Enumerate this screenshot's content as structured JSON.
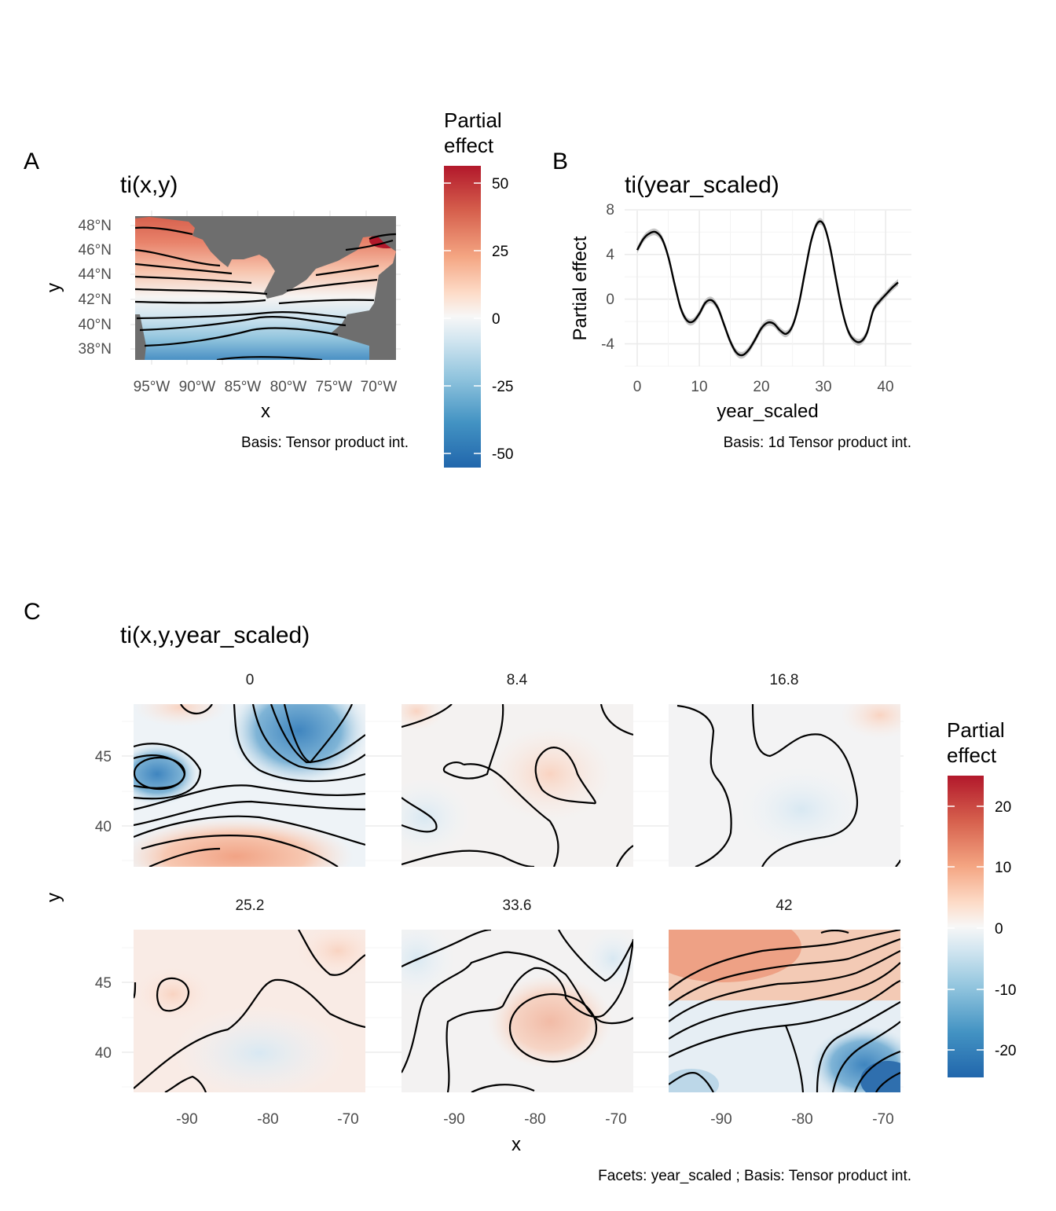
{
  "panels": {
    "A": {
      "letter": "A",
      "title": "ti(x,y)",
      "xlabel": "x",
      "ylabel": "y",
      "x_ticks": [
        "95°W",
        "90°W",
        "85°W",
        "80°W",
        "75°W",
        "70°W"
      ],
      "y_ticks": [
        "48°N",
        "46°N",
        "44°N",
        "42°N",
        "40°N",
        "38°N"
      ],
      "caption": "Basis: Tensor product int."
    },
    "B": {
      "letter": "B",
      "title": "ti(year_scaled)",
      "xlabel": "year_scaled",
      "ylabel": "Partial effect",
      "x_ticks": [
        "0",
        "10",
        "20",
        "30",
        "40"
      ],
      "y_ticks": [
        "8",
        "4",
        "0",
        "-4"
      ],
      "caption": "Basis: 1d Tensor product int."
    },
    "C": {
      "letter": "C",
      "title": "ti(x,y,year_scaled)",
      "xlabel": "x",
      "ylabel": "y",
      "facets": [
        "0",
        "8.4",
        "16.8",
        "25.2",
        "33.6",
        "42"
      ],
      "x_ticks": [
        "-90",
        "-80",
        "-70"
      ],
      "y_ticks": [
        "45",
        "40"
      ],
      "caption": "Facets: year_scaled ; Basis: Tensor product int."
    }
  },
  "legends": {
    "top": {
      "title_line1": "Partial",
      "title_line2": "effect",
      "ticks": [
        "50",
        "25",
        "0",
        "-25",
        "-50"
      ]
    },
    "bottom": {
      "title_line1": "Partial",
      "title_line2": "effect",
      "ticks": [
        "20",
        "10",
        "0",
        "-10",
        "-20"
      ]
    }
  },
  "colors": {
    "high": "#b2182b",
    "mid": "#f7f7f7",
    "low": "#2166ac",
    "land": "#6e6e6e"
  },
  "chart_data": [
    {
      "type": "heatmap",
      "title": "ti(x,y)",
      "xlabel": "x",
      "ylabel": "y",
      "xlim": [
        -97,
        -68
      ],
      "ylim": [
        37,
        48.7
      ],
      "legend_range": [
        -55,
        57
      ]
    },
    {
      "type": "line",
      "title": "ti(year_scaled)",
      "xlabel": "year_scaled",
      "ylabel": "Partial effect",
      "xlim": [
        0,
        42
      ],
      "ylim": [
        -6,
        8
      ],
      "x": [
        0,
        1,
        2,
        3,
        4,
        5,
        6,
        7,
        8,
        9,
        10,
        11,
        12,
        13,
        14,
        15,
        16,
        17,
        18,
        19,
        20,
        21,
        22,
        23,
        24,
        25,
        26,
        27,
        28,
        29,
        30,
        31,
        32,
        33,
        34,
        35,
        36,
        37,
        38,
        39,
        40,
        41,
        42
      ],
      "y": [
        4.4,
        5.4,
        5.9,
        6.0,
        5.4,
        3.8,
        1.4,
        -0.8,
        -1.9,
        -2.0,
        -1.3,
        -0.3,
        -0.1,
        -0.8,
        -2.3,
        -3.8,
        -4.8,
        -5.0,
        -4.5,
        -3.6,
        -2.6,
        -2.1,
        -2.2,
        -2.8,
        -3.1,
        -2.4,
        -0.5,
        2.4,
        5.2,
        6.8,
        6.7,
        4.8,
        1.8,
        -1.0,
        -2.9,
        -3.7,
        -3.8,
        -3.0,
        -1.0,
        -0.2,
        0.4,
        1.0,
        1.5
      ],
      "band_halfwidth": 0.3
    },
    {
      "type": "heatmap",
      "title": "ti(x,y,year_scaled)",
      "xlabel": "x",
      "ylabel": "y",
      "facet_by": "year_scaled",
      "facets": [
        0,
        8.4,
        16.8,
        25.2,
        33.6,
        42
      ],
      "xlim": [
        -96.5,
        -68
      ],
      "ylim": [
        37.3,
        48.7
      ],
      "legend_range": [
        -25,
        25
      ]
    }
  ]
}
